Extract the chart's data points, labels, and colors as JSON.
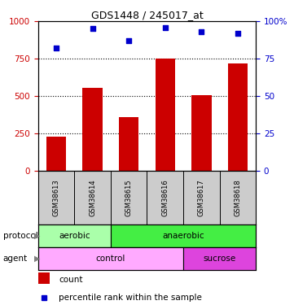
{
  "title": "GDS1448 / 245017_at",
  "samples": [
    "GSM38613",
    "GSM38614",
    "GSM38615",
    "GSM38616",
    "GSM38617",
    "GSM38618"
  ],
  "counts": [
    230,
    555,
    360,
    750,
    505,
    720
  ],
  "percentile_ranks": [
    82,
    95,
    87,
    96,
    93,
    92
  ],
  "bar_color": "#cc0000",
  "dot_color": "#0000cc",
  "ylim_left": [
    0,
    1000
  ],
  "ylim_right": [
    0,
    100
  ],
  "yticks_left": [
    0,
    250,
    500,
    750,
    1000
  ],
  "yticks_right": [
    0,
    25,
    50,
    75,
    100
  ],
  "protocol_labels": [
    {
      "text": "aerobic",
      "start": 0,
      "end": 2,
      "color": "#aaffaa"
    },
    {
      "text": "anaerobic",
      "start": 2,
      "end": 6,
      "color": "#44ee44"
    }
  ],
  "agent_labels": [
    {
      "text": "control",
      "start": 0,
      "end": 4,
      "color": "#ffaaff"
    },
    {
      "text": "sucrose",
      "start": 4,
      "end": 6,
      "color": "#dd44dd"
    }
  ],
  "legend_count_label": "count",
  "legend_pct_label": "percentile rank within the sample",
  "protocol_row_label": "protocol",
  "agent_row_label": "agent",
  "background_color": "#ffffff",
  "sample_bg_color": "#cccccc",
  "bar_width": 0.55,
  "tick_label_color_left": "#cc0000",
  "tick_label_color_right": "#0000cc"
}
